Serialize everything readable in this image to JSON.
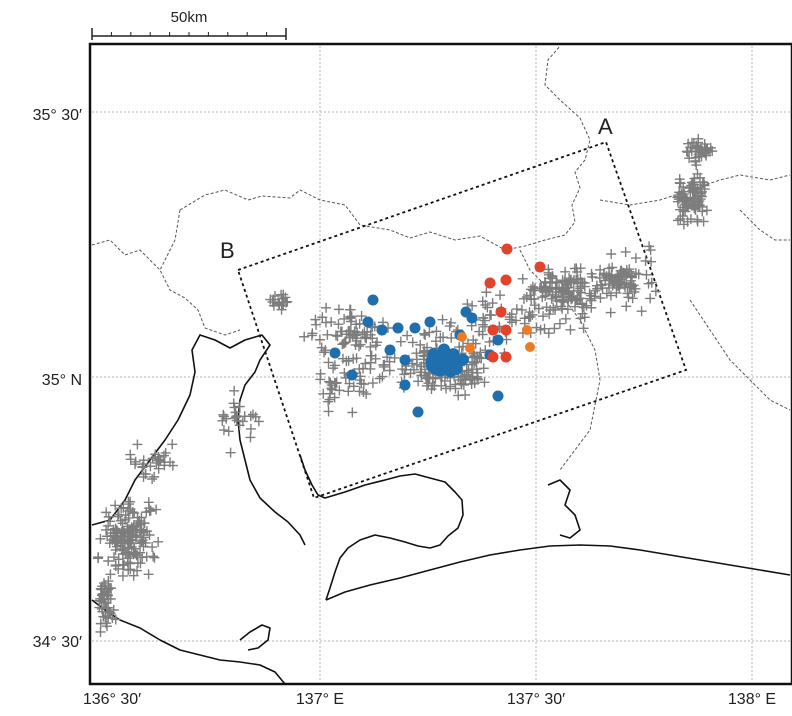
{
  "scale_bar": {
    "label": "50km"
  },
  "lat_labels": [
    "35° 30′",
    "35° N",
    "34° 30′"
  ],
  "lon_labels": [
    "136° 30′",
    "137° E",
    "137° 30′",
    "138° E"
  ],
  "profile_labels": {
    "a": "A",
    "b": "B"
  },
  "colors": {
    "cross": "#7d7d7d",
    "blue_event": "#1f6fae",
    "red_event": "#e2432a",
    "orange_event": "#ec7b26",
    "coast": "#111111",
    "grid": "#b5b5b5",
    "boundary": "#555555"
  },
  "legend": [],
  "icons": {
    "cross_marker": "plus-icon",
    "event_marker": "dot-icon"
  }
}
